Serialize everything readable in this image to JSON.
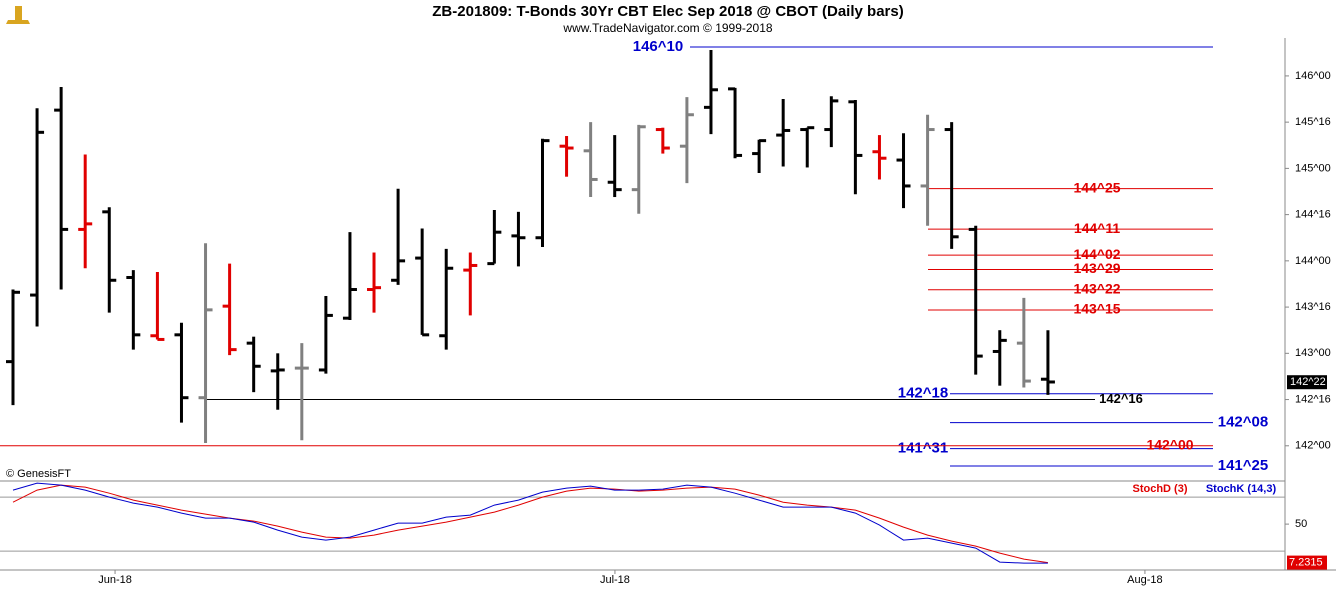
{
  "chart_data": [
    {
      "type": "ohlc",
      "title": "ZB-201809:  T-Bonds 30Yr CBT Elec Sep 2018 @ CBOT  (Daily bars)",
      "subtitle": "www.TradeNavigator.com © 1999-2018",
      "source": "© GenesisFT",
      "xlim": [
        -0.54,
        52.85
      ],
      "ylim": [
        141.63,
        146.41
      ],
      "yticks": [
        {
          "value": 146,
          "label": "146^00"
        },
        {
          "value": 145.5,
          "label": "145^16"
        },
        {
          "value": 145,
          "label": "145^00"
        },
        {
          "value": 144.5,
          "label": "144^16"
        },
        {
          "value": 144,
          "label": "144^00"
        },
        {
          "value": 143.5,
          "label": "143^16"
        },
        {
          "value": 143,
          "label": "143^00"
        },
        {
          "value": 142.5,
          "label": "142^16"
        },
        {
          "value": 142,
          "label": "142^00"
        }
      ],
      "open": [
        142.91,
        143.63,
        145.63,
        144.34,
        144.53,
        143.82,
        143.19,
        143.2,
        142.52,
        143.51,
        143.11,
        142.81,
        142.84,
        142.82,
        143.38,
        143.69,
        143.79,
        144.03,
        143.19,
        143.9,
        143.97,
        144.27,
        144.25,
        145.24,
        145.19,
        144.85,
        144.77,
        145.42,
        145.24,
        145.66,
        145.86,
        145.16,
        145.36,
        145.42,
        145.42,
        145.72,
        145.18,
        145.09,
        144.81,
        145.42,
        144.34,
        143.02,
        143.11,
        142.72
      ],
      "high": [
        143.69,
        145.65,
        145.88,
        145.15,
        144.58,
        143.9,
        143.88,
        143.33,
        144.19,
        143.97,
        143.18,
        143.0,
        143.11,
        143.62,
        144.31,
        144.09,
        144.78,
        144.35,
        144.13,
        144.09,
        144.55,
        144.53,
        145.32,
        145.35,
        145.5,
        145.36,
        145.47,
        145.44,
        145.77,
        146.28,
        145.87,
        145.31,
        145.75,
        145.44,
        145.78,
        145.74,
        145.36,
        145.38,
        145.58,
        145.5,
        144.38,
        143.25,
        143.6,
        143.25
      ],
      "low": [
        142.44,
        143.29,
        143.69,
        143.92,
        143.44,
        143.04,
        143.15,
        142.25,
        142.03,
        142.98,
        142.58,
        142.39,
        142.06,
        142.78,
        143.36,
        143.44,
        143.74,
        143.2,
        143.04,
        143.41,
        143.97,
        143.94,
        144.15,
        144.91,
        144.69,
        144.69,
        144.51,
        145.16,
        144.84,
        145.37,
        145.11,
        144.95,
        145.02,
        145.01,
        145.23,
        144.72,
        144.88,
        144.57,
        144.38,
        144.13,
        142.77,
        142.65,
        142.63,
        142.55
      ],
      "close": [
        143.66,
        145.39,
        144.34,
        144.4,
        143.79,
        143.2,
        143.15,
        142.52,
        143.47,
        143.04,
        142.86,
        142.82,
        142.84,
        143.41,
        143.69,
        143.71,
        144.0,
        143.2,
        143.92,
        143.95,
        144.31,
        144.25,
        145.3,
        145.22,
        144.88,
        144.77,
        145.45,
        145.22,
        145.58,
        145.85,
        145.14,
        145.3,
        145.41,
        145.44,
        145.73,
        145.14,
        145.11,
        144.81,
        145.42,
        144.26,
        142.97,
        143.14,
        142.7,
        142.69
      ],
      "bar_colors": [
        "#000000",
        "#000000",
        "#000000",
        "#e00000",
        "#000000",
        "#000000",
        "#e00000",
        "#000000",
        "#808080",
        "#e00000",
        "#000000",
        "#000000",
        "#808080",
        "#000000",
        "#000000",
        "#e00000",
        "#000000",
        "#000000",
        "#000000",
        "#e00000",
        "#000000",
        "#000000",
        "#000000",
        "#e00000",
        "#808080",
        "#000000",
        "#808080",
        "#e00000",
        "#808080",
        "#000000",
        "#000000",
        "#000000",
        "#000000",
        "#000000",
        "#000000",
        "#000000",
        "#e00000",
        "#000000",
        "#808080",
        "#000000",
        "#000000",
        "#000000",
        "#808080",
        "#000000"
      ],
      "levels": [
        {
          "value": 146.3125,
          "label": "146^10",
          "color": "#0000cc"
        },
        {
          "value": 144.78125,
          "label": "144^25",
          "color": "#e00000"
        },
        {
          "value": 144.34375,
          "label": "144^11",
          "color": "#e00000"
        },
        {
          "value": 144.0625,
          "label": "144^02",
          "color": "#e00000"
        },
        {
          "value": 143.90625,
          "label": "143^29",
          "color": "#e00000"
        },
        {
          "value": 143.6875,
          "label": "143^22",
          "color": "#e00000"
        },
        {
          "value": 143.46875,
          "label": "143^15",
          "color": "#e00000"
        },
        {
          "value": 142.5625,
          "label": "142^18",
          "color": "#0000cc"
        },
        {
          "value": 142.5,
          "label": "142^16",
          "color": "#000000"
        },
        {
          "value": 142.25,
          "label": "142^08",
          "color": "#0000cc"
        },
        {
          "value": 141.96875,
          "label": "141^31",
          "color": "#0000cc"
        },
        {
          "value": 142,
          "label": "142^00",
          "color": "#e00000"
        },
        {
          "value": 141.78125,
          "label": "141^25",
          "color": "#0000cc"
        }
      ],
      "last_price": {
        "value": 142.6875,
        "label": "142^22"
      }
    },
    {
      "type": "line",
      "xlim": [
        -0.54,
        52.85
      ],
      "ylim": [
        -1,
        96.8
      ],
      "yticks": [
        50
      ],
      "levels": [
        80,
        20
      ],
      "xticks": [
        {
          "value": 4.24,
          "label": "Jun-18"
        },
        {
          "value": 25.01,
          "label": "Jul-18"
        },
        {
          "value": 47.03,
          "label": "Aug-18"
        }
      ],
      "series": [
        {
          "name": "StochD (3)",
          "color": "#e00000",
          "values": [
            74.4,
            87.8,
            93.3,
            91.1,
            84.4,
            76.7,
            71.1,
            65.6,
            61.1,
            56.7,
            53.3,
            47.8,
            41.1,
            35.6,
            34.4,
            37.8,
            43.3,
            47.8,
            52.2,
            57.8,
            63.3,
            71.1,
            80,
            86.7,
            90,
            88.9,
            86.7,
            87.8,
            90,
            91.1,
            88.9,
            82.2,
            74.4,
            71.1,
            68.9,
            65.6,
            56.7,
            46.7,
            37.8,
            31.1,
            25.6,
            17.8,
            11.1,
            7.2315
          ]
        },
        {
          "name": "StochK (14,3)",
          "color": "#0000cc",
          "values": [
            87.8,
            95.6,
            93.3,
            87.8,
            80,
            73.3,
            68.9,
            62.2,
            56.7,
            56.7,
            52.2,
            43.3,
            35.6,
            32.2,
            35.6,
            43.3,
            51.1,
            51.1,
            57.8,
            60,
            71.1,
            76.7,
            85.6,
            90,
            92.2,
            87.8,
            87.8,
            88.9,
            93.3,
            91.1,
            84.4,
            76.7,
            68.9,
            68.9,
            68.9,
            62.2,
            48.9,
            32.2,
            34.4,
            28.9,
            23.3,
            7.8,
            6.7,
            6.7
          ]
        }
      ]
    }
  ]
}
